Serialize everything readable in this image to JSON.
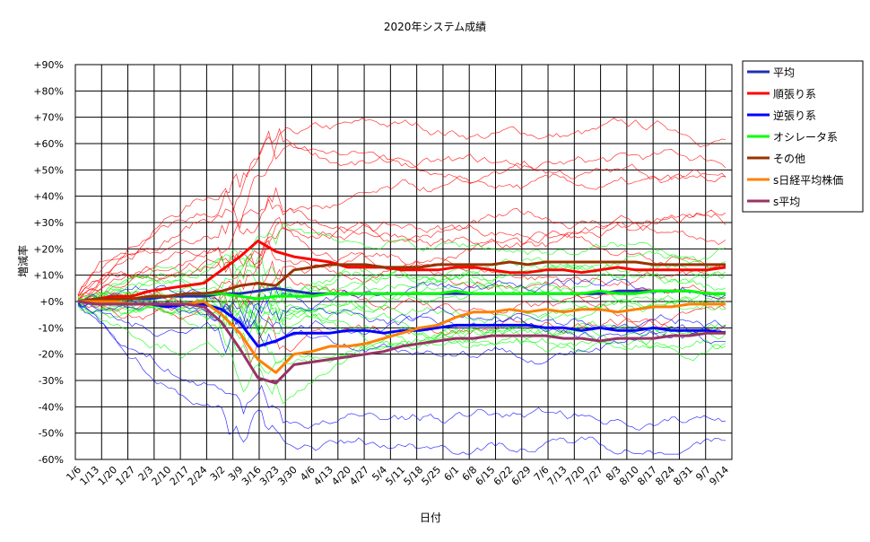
{
  "chart_data": {
    "type": "line",
    "title": "2020年システム成績",
    "xlabel": "日付",
    "ylabel": "増減率",
    "ylim": [
      -60,
      90
    ],
    "y_ticks": [
      "+90%",
      "+80%",
      "+70%",
      "+60%",
      "+50%",
      "+40%",
      "+30%",
      "+20%",
      "+10%",
      "+0%",
      "-10%",
      "-20%",
      "-30%",
      "-40%",
      "-50%",
      "-60%"
    ],
    "x": [
      "1/6",
      "1/13",
      "1/20",
      "1/27",
      "2/3",
      "2/10",
      "2/17",
      "2/24",
      "3/2",
      "3/9",
      "3/16",
      "3/23",
      "3/30",
      "4/6",
      "4/13",
      "4/20",
      "4/27",
      "5/4",
      "5/11",
      "5/18",
      "5/25",
      "6/1",
      "6/8",
      "6/15",
      "6/22",
      "6/29",
      "7/6",
      "7/13",
      "7/20",
      "7/27",
      "8/3",
      "8/10",
      "8/17",
      "8/24",
      "8/31",
      "9/7",
      "9/14"
    ],
    "grid": true,
    "legend_position": "right",
    "series": [
      {
        "name": "平均",
        "color": "#2030b0",
        "values": [
          0,
          1,
          1,
          1,
          1,
          2,
          2,
          2,
          3,
          3,
          4,
          5,
          4,
          3,
          3,
          3,
          3,
          3,
          3,
          3,
          3,
          3,
          3,
          3,
          3,
          3,
          3,
          3,
          3,
          3,
          4,
          4,
          4,
          4,
          4,
          3,
          3
        ]
      },
      {
        "name": "順張り系",
        "color": "#ff0000",
        "values": [
          0,
          1,
          2,
          2,
          4,
          5,
          6,
          7,
          12,
          17,
          23,
          19,
          17,
          16,
          15,
          13,
          13,
          13,
          12,
          12,
          12,
          13,
          13,
          12,
          11,
          11,
          12,
          12,
          11,
          12,
          13,
          12,
          12,
          12,
          12,
          12,
          13
        ]
      },
      {
        "name": "逆張り系",
        "color": "#0000ff",
        "values": [
          0,
          -1,
          -1,
          -1,
          -1,
          -2,
          -1,
          -1,
          -3,
          -8,
          -17,
          -15,
          -12,
          -12,
          -12,
          -11,
          -11,
          -12,
          -11,
          -11,
          -10,
          -9,
          -9,
          -9,
          -9,
          -9,
          -10,
          -10,
          -11,
          -10,
          -11,
          -11,
          -10,
          -11,
          -11,
          -11,
          -12
        ]
      },
      {
        "name": "オシレータ系",
        "color": "#00ff00",
        "values": [
          0,
          0,
          1,
          1,
          2,
          2,
          3,
          3,
          3,
          2,
          1,
          2,
          2,
          2,
          3,
          3,
          3,
          3,
          3,
          3,
          3,
          4,
          3,
          3,
          3,
          3,
          3,
          3,
          3,
          4,
          3,
          3,
          4,
          4,
          4,
          3,
          3
        ]
      },
      {
        "name": "その他",
        "color": "#993300",
        "values": [
          0,
          1,
          1,
          1,
          2,
          2,
          3,
          3,
          4,
          6,
          7,
          6,
          12,
          13,
          14,
          14,
          14,
          13,
          13,
          13,
          14,
          14,
          14,
          14,
          15,
          14,
          15,
          15,
          15,
          15,
          15,
          15,
          14,
          14,
          14,
          14,
          14
        ]
      },
      {
        "name": "s日経平均株価",
        "color": "#ff8000",
        "values": [
          0,
          0,
          0,
          -1,
          -1,
          -1,
          -1,
          0,
          -5,
          -12,
          -22,
          -27,
          -20,
          -19,
          -17,
          -17,
          -16,
          -14,
          -12,
          -10,
          -9,
          -6,
          -4,
          -4,
          -3,
          -4,
          -3,
          -4,
          -3,
          -3,
          -4,
          -3,
          -2,
          -2,
          -1,
          -1,
          -1
        ]
      },
      {
        "name": "s平均",
        "color": "#993366",
        "values": [
          0,
          -1,
          -1,
          -1,
          -1,
          -1,
          -1,
          -2,
          -8,
          -18,
          -29,
          -31,
          -24,
          -23,
          -22,
          -21,
          -20,
          -19,
          -17,
          -16,
          -15,
          -14,
          -14,
          -13,
          -13,
          -13,
          -13,
          -14,
          -14,
          -15,
          -14,
          -14,
          -14,
          -13,
          -13,
          -12,
          -12
        ]
      }
    ]
  }
}
